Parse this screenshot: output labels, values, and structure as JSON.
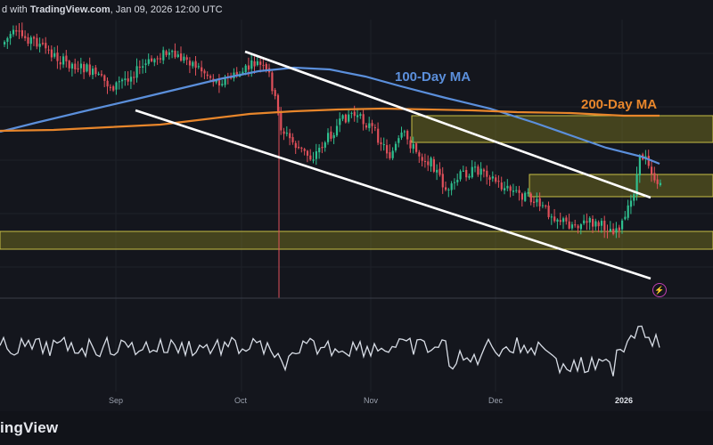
{
  "header": {
    "prefix": "d with ",
    "site": "TradingView.com",
    "date": ", Jan 09, 2026 12:00 UTC"
  },
  "footer": {
    "brand": "ingView"
  },
  "chart_data": {
    "type": "candlestick",
    "ma_labels": [
      {
        "text": "100-Day MA",
        "color": "#5b8fdb"
      },
      {
        "text": "200-Day MA",
        "color": "#e8862b"
      }
    ],
    "x_ticks": [
      "Sep",
      "Oct",
      "Nov",
      "Dec",
      "2026"
    ],
    "colors": {
      "up": "#2fbf8f",
      "down": "#e0505a",
      "ma100": "#5b8fdb",
      "ma200": "#e8862b",
      "zone_fill": "#7e7a22",
      "zone_stroke": "#c8bf45",
      "channel": "#ffffff",
      "oscillator": "#d8dde6",
      "background": "#14161d"
    },
    "alert_icon": "lightning-icon",
    "grid": true
  }
}
